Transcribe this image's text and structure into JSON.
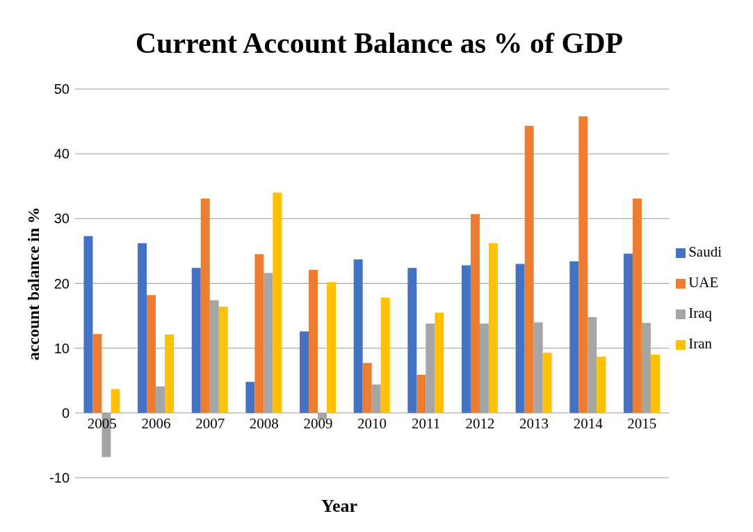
{
  "chart_data": {
    "type": "bar",
    "title": "Current Account Balance as % of GDP",
    "xlabel": "Year",
    "ylabel": "account balance in %",
    "categories": [
      "2005",
      "2006",
      "2007",
      "2008",
      "2009",
      "2010",
      "2011",
      "2012",
      "2013",
      "2014",
      "2015"
    ],
    "series": [
      {
        "name": "Saudi",
        "color": "#4472c4",
        "values": [
          27.3,
          26.2,
          22.4,
          4.8,
          12.6,
          23.7,
          22.4,
          22.8,
          23.0,
          23.4,
          24.6
        ]
      },
      {
        "name": "UAE",
        "color": "#ed7d31",
        "values": [
          12.2,
          18.2,
          33.1,
          24.5,
          22.1,
          7.7,
          5.9,
          30.7,
          44.3,
          45.8,
          33.1
        ]
      },
      {
        "name": "Iraq",
        "color": "#a5a5a5",
        "values": [
          -6.8,
          4.1,
          17.4,
          21.6,
          -1.0,
          4.4,
          13.8,
          13.8,
          14.0,
          14.8,
          13.9
        ]
      },
      {
        "name": "Iran",
        "color": "#ffc000",
        "values": [
          3.7,
          12.1,
          16.4,
          34.0,
          20.2,
          17.8,
          15.5,
          26.2,
          9.3,
          8.7,
          9.0
        ]
      }
    ],
    "ylim": [
      -10,
      50
    ],
    "yticks": [
      -10,
      0,
      10,
      20,
      30,
      40,
      50
    ],
    "grid": "y",
    "legend": "right"
  }
}
